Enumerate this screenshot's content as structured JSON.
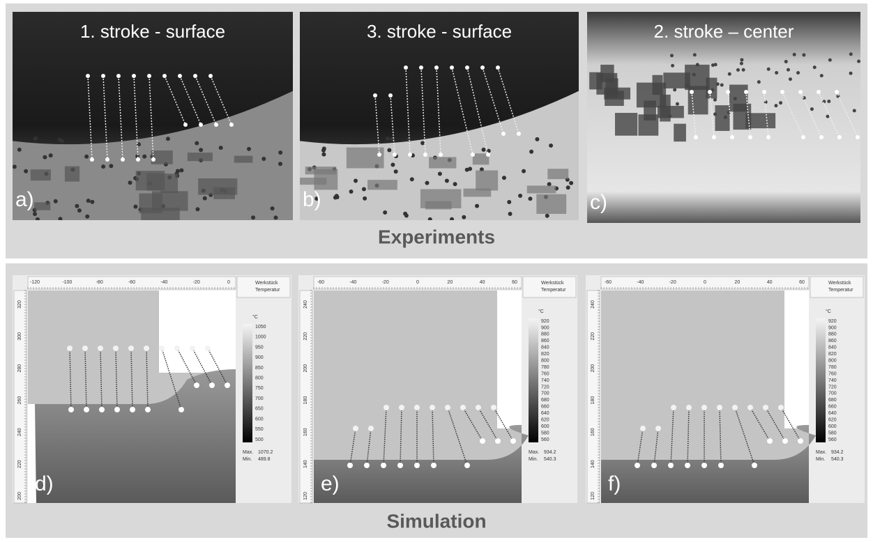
{
  "experiments": {
    "label": "Experiments",
    "panels": [
      {
        "title": "1. stroke - surface",
        "letter": "a)"
      },
      {
        "title": "3. stroke - surface",
        "letter": "b)"
      },
      {
        "title": "2. stroke – center",
        "letter": "c)"
      }
    ]
  },
  "simulation": {
    "label": "Simulation",
    "panels": [
      {
        "letter": "d)",
        "legend_title": "Werkstück",
        "legend_subtitle": "Temperatur",
        "unit": "°C",
        "x_ticks": [
          -120,
          -100,
          -80,
          -60,
          -40,
          -20,
          0
        ],
        "y_ticks": [
          320,
          300,
          280,
          260,
          240,
          220,
          200
        ],
        "scale": [
          1050,
          1000,
          950,
          900,
          850,
          800,
          750,
          700,
          650,
          600,
          550,
          500
        ],
        "max_label": "Max.",
        "max": 1070.2,
        "min_label": "Min.",
        "min": 489.8
      },
      {
        "letter": "e)",
        "legend_title": "Werkstück",
        "legend_subtitle": "Temperatur",
        "unit": "°C",
        "x_ticks": [
          -60,
          -40,
          -20,
          0,
          20,
          40,
          60
        ],
        "y_ticks": [
          240,
          220,
          200,
          180,
          160,
          140,
          120
        ],
        "scale": [
          920,
          900,
          880,
          860,
          840,
          820,
          800,
          780,
          760,
          740,
          720,
          700,
          680,
          660,
          640,
          620,
          600,
          580,
          560
        ],
        "max_label": "Max.",
        "max": 934.2,
        "min_label": "Min.",
        "min": 540.3
      },
      {
        "letter": "f)",
        "legend_title": "Werkstück",
        "legend_subtitle": "Temperatur",
        "unit": "°C",
        "x_ticks": [
          -60,
          -40,
          -20,
          0,
          20,
          40,
          60
        ],
        "y_ticks": [
          240,
          220,
          200,
          180,
          160,
          140,
          120
        ],
        "scale": [
          920,
          900,
          880,
          860,
          840,
          820,
          800,
          780,
          760,
          740,
          720,
          700,
          680,
          660,
          640,
          620,
          600,
          580,
          560
        ],
        "max_label": "Max.",
        "max": 934.2,
        "min_label": "Min.",
        "min": 540.3
      }
    ]
  }
}
